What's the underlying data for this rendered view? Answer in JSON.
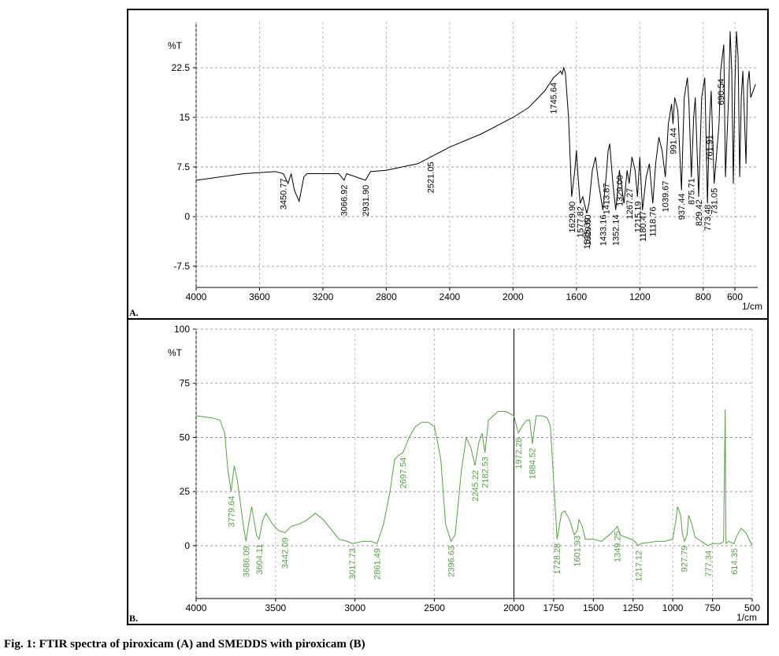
{
  "caption": "Fig. 1: FTIR spectra of piroxicam (A) and SMEDDS with piroxicam (B)",
  "chart_data": [
    {
      "type": "line",
      "panel_label": "A.",
      "x_label": "1/cm",
      "y_label": "%T",
      "xlim": [
        4000,
        456
      ],
      "ylim": [
        -10.7,
        29.4
      ],
      "xticks": [
        4000,
        3600,
        3200,
        2800,
        2400,
        2000,
        1600,
        1200,
        800,
        600
      ],
      "yticks": [
        -7.5,
        0,
        7.5,
        15,
        22.5
      ],
      "grid": true,
      "x": [
        4000,
        3700,
        3500,
        3450,
        3420,
        3400,
        3380,
        3350,
        3320,
        3300,
        3100,
        3066,
        3050,
        2931,
        2900,
        2800,
        2600,
        2521,
        2400,
        2200,
        2000,
        1900,
        1800,
        1745,
        1720,
        1700,
        1690,
        1680,
        1670,
        1650,
        1630,
        1610,
        1600,
        1590,
        1577,
        1560,
        1535,
        1520,
        1500,
        1480,
        1460,
        1433,
        1413,
        1400,
        1390,
        1370,
        1352,
        1340,
        1329,
        1300,
        1280,
        1267,
        1250,
        1230,
        1215,
        1200,
        1183,
        1160,
        1140,
        1118,
        1100,
        1080,
        1060,
        1039,
        1020,
        1000,
        991,
        980,
        960,
        937,
        920,
        900,
        890,
        875,
        860,
        850,
        829,
        810,
        790,
        773,
        761,
        750,
        731,
        700,
        690,
        670,
        660,
        640,
        630,
        620,
        610,
        600,
        590,
        580,
        570,
        560,
        550,
        530,
        520,
        510,
        500,
        470
      ],
      "series": [
        {
          "color": "#000000",
          "values": [
            5.5,
            6.5,
            6.8,
            6.5,
            5,
            6.5,
            4,
            2.3,
            6,
            6.5,
            6.5,
            5.5,
            6.5,
            5.5,
            6.8,
            7,
            8,
            9,
            10.5,
            12.5,
            15,
            16.5,
            19,
            21,
            21.5,
            22,
            21.5,
            22.5,
            21.7,
            15,
            3,
            7,
            10,
            6,
            2,
            3,
            0.5,
            2,
            7,
            9,
            5,
            1,
            6,
            10,
            11,
            5,
            1,
            4,
            7,
            2,
            7,
            5,
            9,
            7,
            3,
            9,
            1,
            6,
            8,
            2,
            8,
            12,
            10,
            6,
            14,
            17,
            14,
            18,
            16,
            4,
            18,
            21,
            17,
            6,
            15,
            18,
            3,
            18,
            21,
            2,
            14,
            19,
            5,
            14,
            22,
            26,
            6,
            18,
            28,
            22,
            5,
            20,
            28,
            24,
            6,
            18,
            22,
            8,
            20,
            22,
            18,
            20
          ]
        }
      ],
      "peak_labels": [
        {
          "value": 3450.77,
          "label": "3450.77"
        },
        {
          "value": 3066.92,
          "label": "3066.92"
        },
        {
          "value": 2931.9,
          "label": "2931.90"
        },
        {
          "value": 2521.05,
          "label": "2521.05"
        },
        {
          "value": 1745.64,
          "label": "1745.64"
        },
        {
          "value": 1629.9,
          "label": "1629.90"
        },
        {
          "value": 1577.82,
          "label": "1577.82"
        },
        {
          "value": 1535.39,
          "label": "1535.39"
        },
        {
          "value": 1529.6,
          "label": "1529.60"
        },
        {
          "value": 1433.16,
          "label": "1433.16"
        },
        {
          "value": 1413.87,
          "label": "1413.87"
        },
        {
          "value": 1352.14,
          "label": "1352.14"
        },
        {
          "value": 1329,
          "label": "1329.00"
        },
        {
          "value": 1267.27,
          "label": "1267.27"
        },
        {
          "value": 1215.19,
          "label": "1215.19"
        },
        {
          "value": 1180.47,
          "label": "1180.47"
        },
        {
          "value": 1118.76,
          "label": "1118.76"
        },
        {
          "value": 1039.67,
          "label": "1039.67"
        },
        {
          "value": 991.44,
          "label": "991.44"
        },
        {
          "value": 937.44,
          "label": "937.44"
        },
        {
          "value": 875.71,
          "label": "875.71"
        },
        {
          "value": 829.42,
          "label": "829.42"
        },
        {
          "value": 773.48,
          "label": "773.48"
        },
        {
          "value": 761.91,
          "label": "761.91"
        },
        {
          "value": 731.05,
          "label": "731.05"
        },
        {
          "value": 690.54,
          "label": "690.54"
        }
      ]
    },
    {
      "type": "line",
      "panel_label": "B.",
      "x_label": "1/cm",
      "y_label": "%T",
      "xlim": [
        4000,
        500
      ],
      "ylim": [
        -24.4,
        100
      ],
      "xticks": [
        4000,
        3500,
        3000,
        2500,
        2000,
        1750,
        1500,
        1250,
        1000,
        750,
        500
      ],
      "yticks": [
        0,
        25,
        50,
        75,
        100
      ],
      "grid": true,
      "vline": 2000,
      "x": [
        4000,
        3900,
        3850,
        3820,
        3800,
        3780,
        3760,
        3740,
        3700,
        3686,
        3670,
        3650,
        3620,
        3604,
        3580,
        3560,
        3520,
        3480,
        3442,
        3400,
        3350,
        3300,
        3250,
        3200,
        3100,
        3050,
        3017,
        2950,
        2900,
        2861,
        2820,
        2780,
        2750,
        2720,
        2697,
        2660,
        2620,
        2580,
        2540,
        2500,
        2460,
        2430,
        2396,
        2370,
        2330,
        2300,
        2270,
        2245,
        2220,
        2200,
        2182,
        2160,
        2100,
        2050,
        2000,
        1972,
        1950,
        1920,
        1900,
        1884,
        1860,
        1820,
        1790,
        1770,
        1750,
        1728,
        1700,
        1680,
        1650,
        1620,
        1601,
        1590,
        1570,
        1550,
        1500,
        1450,
        1400,
        1370,
        1349,
        1330,
        1300,
        1260,
        1240,
        1217,
        1200,
        1100,
        1050,
        1000,
        980,
        970,
        950,
        940,
        927,
        910,
        900,
        880,
        860,
        820,
        800,
        777,
        750,
        700,
        680,
        670,
        668,
        665,
        650,
        614,
        600,
        570,
        540,
        500
      ],
      "series": [
        {
          "color": "#5b9e4c",
          "values": [
            60,
            59,
            58,
            52,
            35,
            25,
            37,
            30,
            8,
            2,
            10,
            18,
            5,
            3,
            12,
            15,
            10,
            7,
            6,
            9,
            10,
            12,
            15,
            12,
            3,
            2,
            1,
            2,
            2,
            1,
            10,
            25,
            40,
            42,
            43,
            50,
            55,
            57,
            57,
            55,
            40,
            10,
            2,
            5,
            35,
            50,
            45,
            37,
            48,
            52,
            43,
            58,
            62,
            62,
            60,
            52,
            55,
            58,
            58,
            47,
            60,
            60,
            59,
            55,
            30,
            3,
            15,
            16,
            12,
            5,
            7,
            12,
            9,
            3,
            3,
            2,
            5,
            7,
            9,
            5,
            4,
            3,
            2,
            0,
            1,
            2,
            2,
            3,
            12,
            18,
            14,
            6,
            2,
            5,
            14,
            10,
            4,
            2,
            1,
            0,
            1,
            1,
            2,
            63,
            35,
            1,
            2,
            1,
            4,
            8,
            6,
            0
          ]
        }
      ],
      "peak_labels": [
        {
          "value": 3779.64,
          "label": "3779.64"
        },
        {
          "value": 3686.09,
          "label": "3686.09"
        },
        {
          "value": 3604.11,
          "label": "3604.11"
        },
        {
          "value": 3442.09,
          "label": "3442.09"
        },
        {
          "value": 3017.73,
          "label": "3017.73"
        },
        {
          "value": 2861.49,
          "label": "2861.49"
        },
        {
          "value": 2697.54,
          "label": "2697.54"
        },
        {
          "value": 2396.63,
          "label": "2396.63"
        },
        {
          "value": 2245.22,
          "label": "2245.22"
        },
        {
          "value": 2182.53,
          "label": "2182.53"
        },
        {
          "value": 1972.28,
          "label": "1972.28"
        },
        {
          "value": 1884.52,
          "label": "1884.52"
        },
        {
          "value": 1728.28,
          "label": "1728.28"
        },
        {
          "value": 1601.93,
          "label": "1601.93"
        },
        {
          "value": 1349.25,
          "label": "1349.25"
        },
        {
          "value": 1217.12,
          "label": "1217.12"
        },
        {
          "value": 927.79,
          "label": "927.79"
        },
        {
          "value": 777.34,
          "label": "777.34"
        },
        {
          "value": 614.35,
          "label": "614.35"
        }
      ]
    }
  ]
}
